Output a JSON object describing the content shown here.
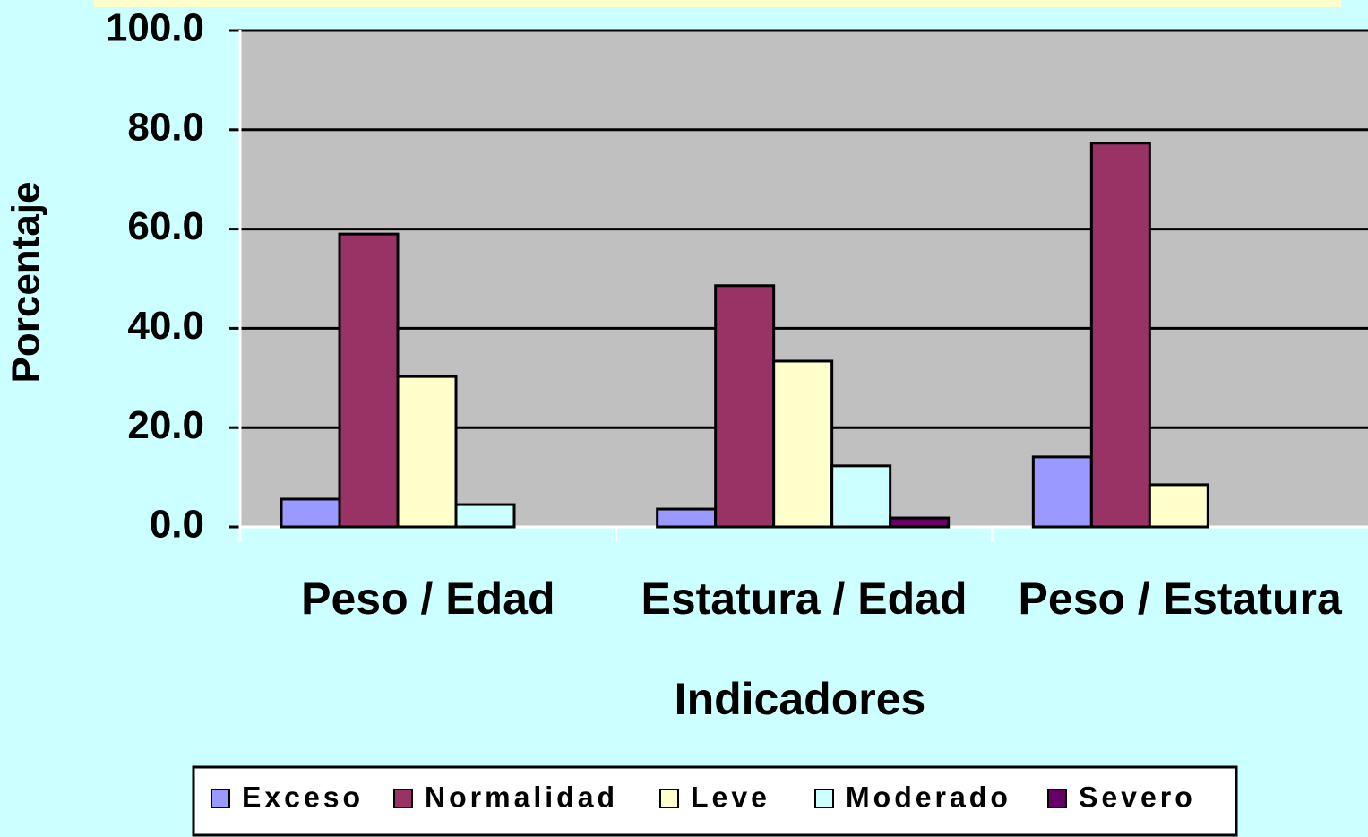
{
  "chart_data": {
    "type": "bar",
    "x_label": "Indicadores",
    "y_label": "Porcentaje",
    "categories": [
      "Peso / Edad",
      "Estatura / Edad",
      "Peso / Estatura"
    ],
    "series": [
      {
        "name": "Exceso",
        "color": "#9999ff",
        "values": [
          5.6,
          3.6,
          14.1
        ]
      },
      {
        "name": "Normalidad",
        "color": "#993366",
        "values": [
          59.0,
          48.6,
          77.3
        ]
      },
      {
        "name": "Leve",
        "color": "#ffffcc",
        "values": [
          30.3,
          33.4,
          8.5
        ]
      },
      {
        "name": "Moderado",
        "color": "#ccffff",
        "values": [
          4.5,
          12.3,
          0
        ]
      },
      {
        "name": "Severo",
        "color": "#660066",
        "values": [
          0,
          1.8,
          0
        ]
      }
    ],
    "ylim": [
      0,
      100
    ],
    "yticks": [
      {
        "value": 0,
        "label": "0.0"
      },
      {
        "value": 20,
        "label": "20.0"
      },
      {
        "value": 40,
        "label": "40.0"
      },
      {
        "value": 60,
        "label": "60.0"
      },
      {
        "value": 80,
        "label": "80.0"
      },
      {
        "value": 100,
        "label": "100.0"
      }
    ],
    "grid": true
  }
}
